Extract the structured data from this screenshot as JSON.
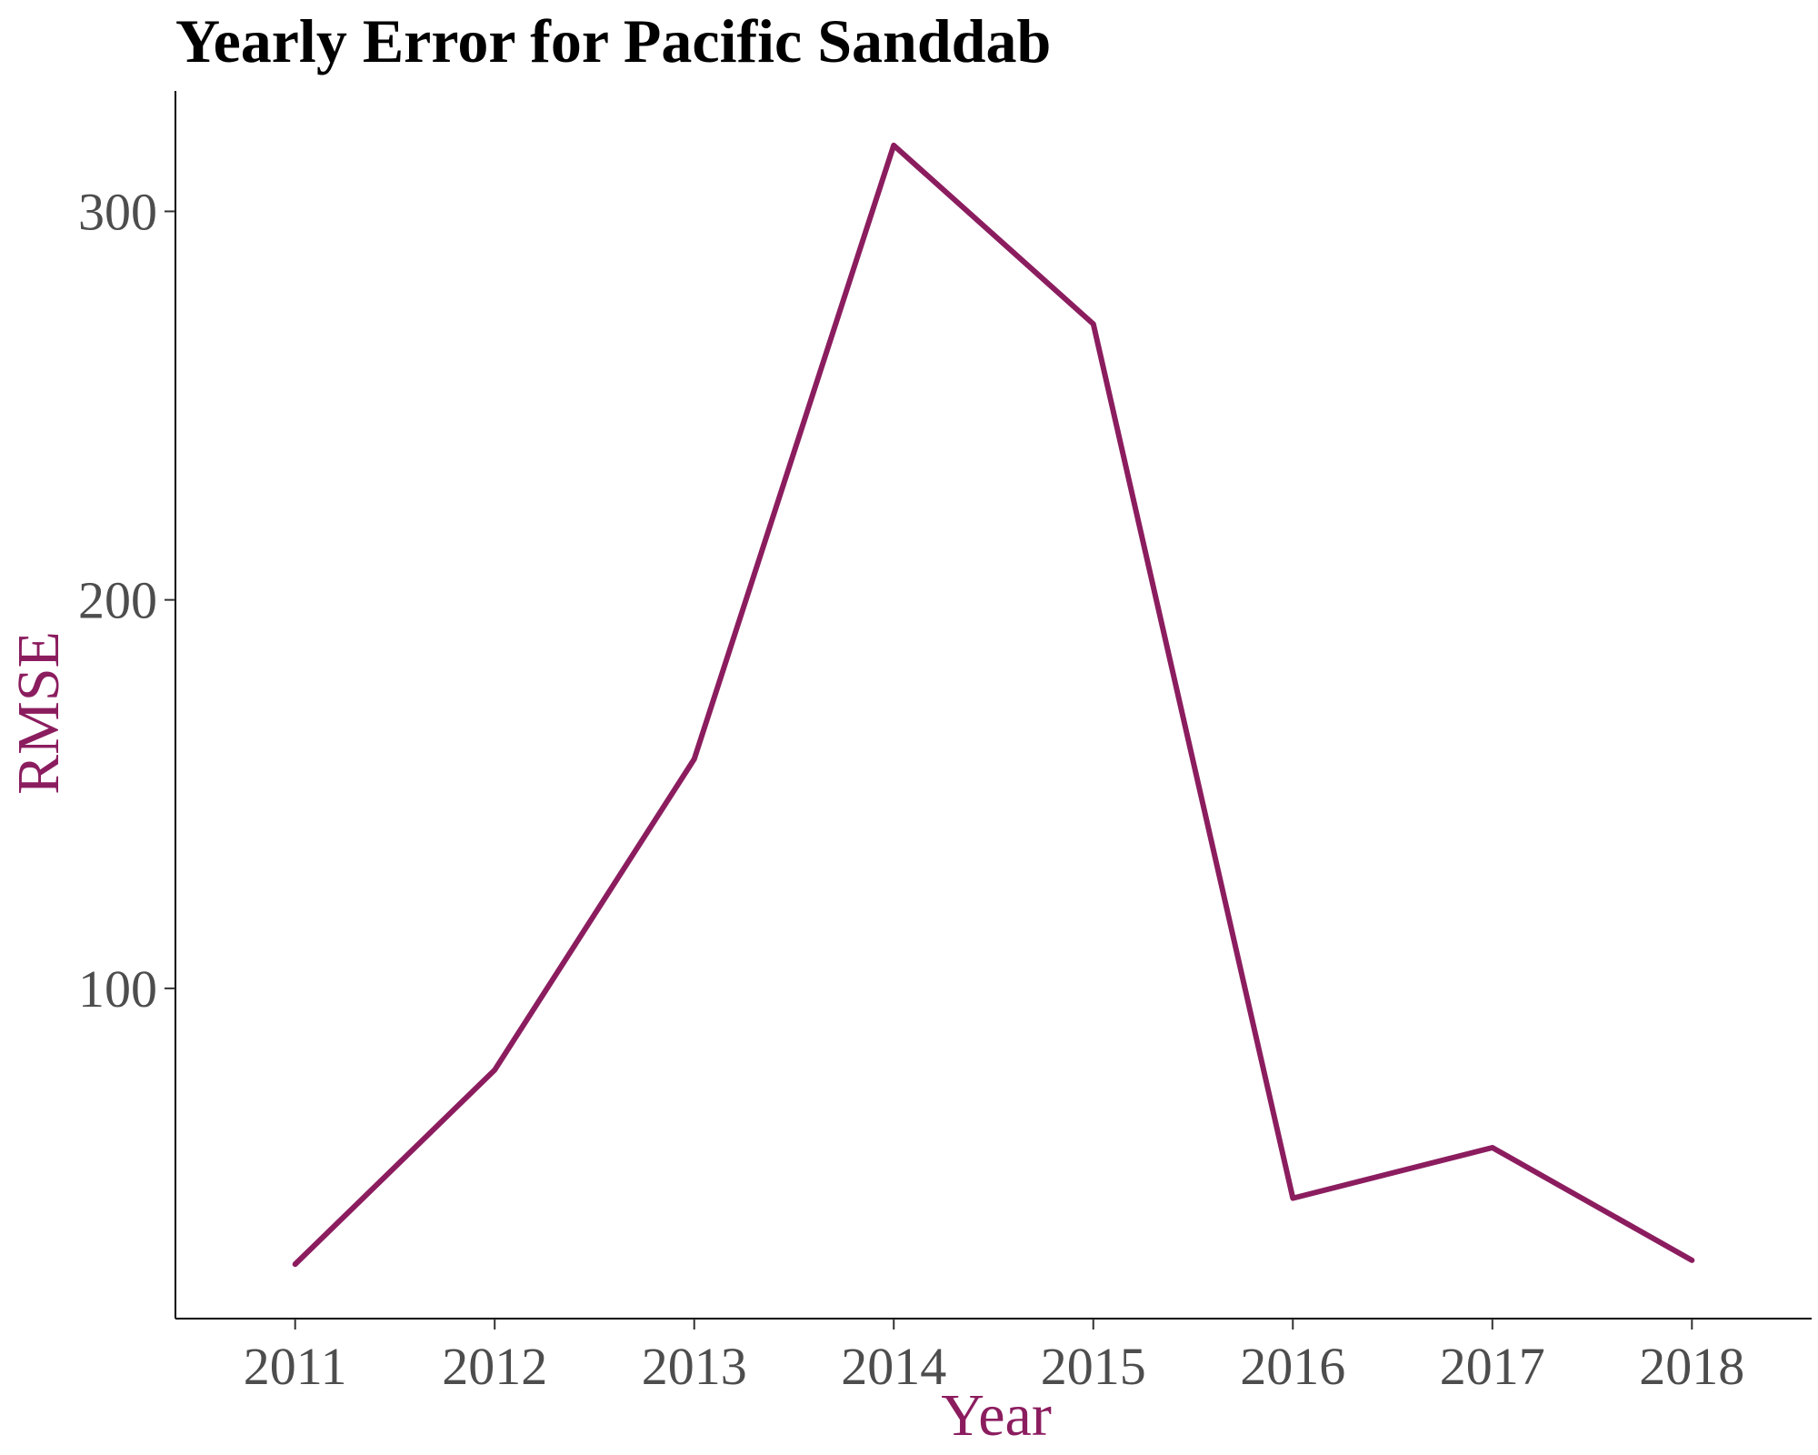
{
  "chart_data": {
    "type": "line",
    "title": "Yearly Error for Pacific Sanddab",
    "xlabel": "Year",
    "ylabel": "RMSE",
    "x": [
      2011,
      2012,
      2013,
      2014,
      2015,
      2016,
      2017,
      2018
    ],
    "series": [
      {
        "values": [
          29,
          79,
          159,
          317,
          271,
          46,
          59,
          30
        ]
      }
    ],
    "xlim": [
      2010.4,
      2018.6
    ],
    "ylim": [
      15,
      331
    ],
    "yticks": [
      100,
      200,
      300
    ],
    "grid": false,
    "legend": "none",
    "line_color": "#8b1d5f",
    "label_color": "#8b1d5f"
  }
}
